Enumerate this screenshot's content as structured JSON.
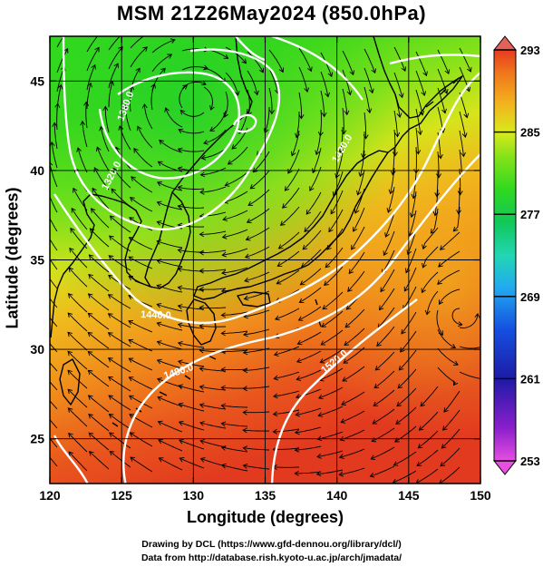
{
  "title": "MSM 21Z26May2024 (850.0hPa)",
  "x_axis": {
    "label": "Longitude (degrees)",
    "range": [
      120,
      150
    ],
    "ticks": [
      "120",
      "125",
      "130",
      "135",
      "140",
      "145",
      "150"
    ]
  },
  "y_axis": {
    "label": "Latitude  (degrees)",
    "range": [
      22.5,
      47.5
    ],
    "ticks": [
      "25",
      "30",
      "35",
      "40",
      "45"
    ]
  },
  "colorbar": {
    "min": 253,
    "max": 293,
    "ticks": [
      "293",
      "285",
      "277",
      "269",
      "261",
      "253"
    ],
    "colors": [
      "#e64fe0",
      "#8b1fcb",
      "#1d1aa6",
      "#1550e0",
      "#21a9f0",
      "#22d6b4",
      "#10c85a",
      "#2fd81f",
      "#86e21a",
      "#d9ea1c",
      "#f2b21d",
      "#f07a1c",
      "#e63b1e",
      "#e46b64"
    ]
  },
  "contour_labels": [
    "1320.0",
    "1380.0",
    "1440.0",
    "1480.0",
    "1520.0",
    "1420.0"
  ],
  "credits": {
    "line1": "Drawing by DCL (https://www.gfd-dennou.org/library/dcl/)",
    "line2": "Data from http://database.rish.kyoto-u.ac.jp/arch/jmadata/"
  },
  "map_style": {
    "field": "temperature (K)",
    "streamlines": "wind",
    "contours": "geopotential height",
    "coastline_color": "#000000",
    "contour_color": "#ffffff"
  }
}
